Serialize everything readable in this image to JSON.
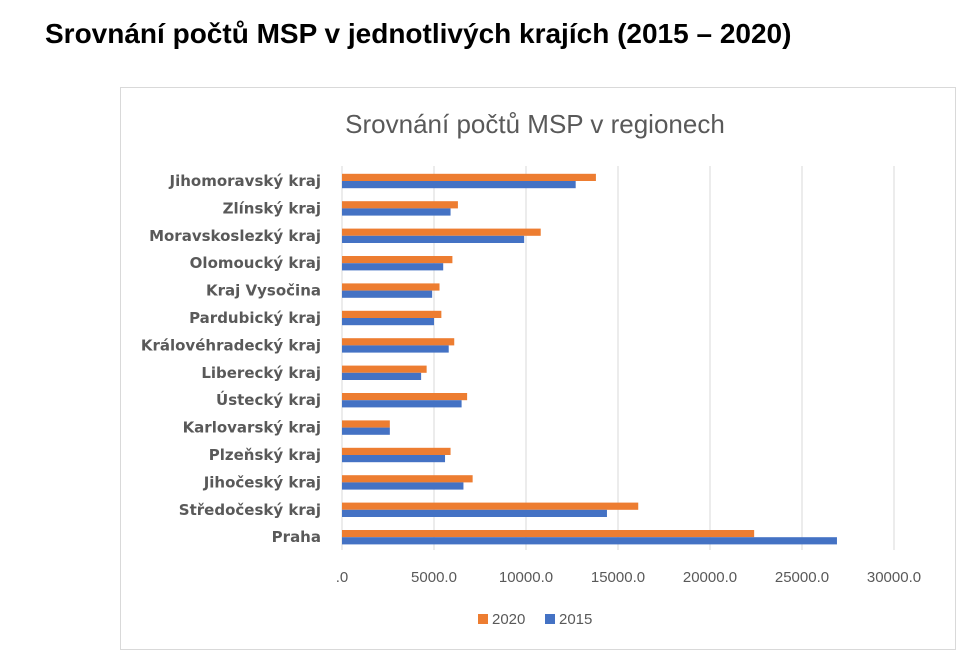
{
  "page": {
    "heading": "Srovnání počtů MSP v jednotlivých krajích (2015 – 2020)"
  },
  "chart_data": {
    "type": "bar",
    "orientation": "horizontal",
    "title": "Srovnání počtů MSP v regionech",
    "categories": [
      "Jihomoravský kraj",
      "Zlínský kraj",
      "Moravskoslezký kraj",
      "Olomoucký kraj",
      "Kraj Vysočina",
      "Pardubický kraj",
      "Královéhradecký kraj",
      "Liberecký kraj",
      "Ústecký kraj",
      "Karlovarský kraj",
      "Plzeňský kraj",
      "Jihočeský kraj",
      "Středočeský kraj",
      "Praha"
    ],
    "series": [
      {
        "name": "2020",
        "color": "#ed7d31",
        "values": [
          13800,
          6300,
          10800,
          6000,
          5300,
          5400,
          6100,
          4600,
          6800,
          2600,
          5900,
          7100,
          16100,
          22400
        ]
      },
      {
        "name": "2015",
        "color": "#4472c4",
        "values": [
          12700,
          5900,
          9900,
          5500,
          4900,
          5000,
          5800,
          4300,
          6500,
          2600,
          5600,
          6600,
          14400,
          26900
        ]
      }
    ],
    "xlim": [
      0,
      30000
    ],
    "x_ticks": [
      0,
      5000,
      10000,
      15000,
      20000,
      25000,
      30000
    ],
    "x_tick_labels": [
      ".0",
      "5000.0",
      "10000.0",
      "15000.0",
      "20000.0",
      "25000.0",
      "30000.0"
    ],
    "grid": true,
    "legend_position": "bottom",
    "xlabel": "",
    "ylabel": ""
  }
}
